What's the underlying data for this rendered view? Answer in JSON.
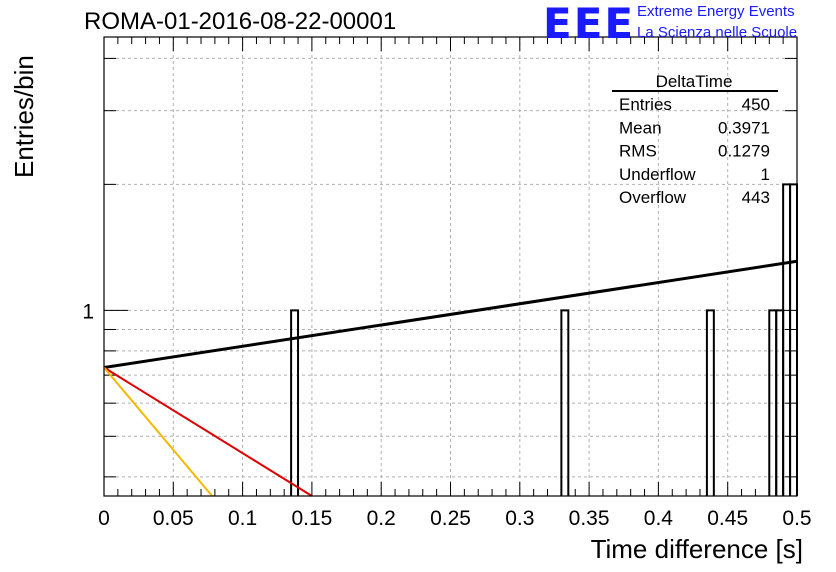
{
  "header": {
    "run_title": "ROMA-01-2016-08-22-00001",
    "logo_text": "EEE",
    "logo_line1": "Extreme Energy Events",
    "logo_line2": "La Scienza nelle Scuole"
  },
  "colors": {
    "logo": "#1a1aff",
    "histogram": "#000000",
    "fit_black": "#000000",
    "fit_red": "#e00000",
    "fit_orange": "#f5b800",
    "grid": "#b0b0b0"
  },
  "stats_box": {
    "title": "DeltaTime",
    "rows": [
      {
        "label": "Entries",
        "value": "450"
      },
      {
        "label": "Mean",
        "value": "0.3971"
      },
      {
        "label": "RMS",
        "value": "0.1279"
      },
      {
        "label": "Underflow",
        "value": "1"
      },
      {
        "label": "Overflow",
        "value": "443"
      }
    ]
  },
  "chart_data": {
    "type": "bar",
    "histogram": "step",
    "xlabel": "Time difference [s]",
    "ylabel": "Entries/bin",
    "xlim": [
      0,
      0.5
    ],
    "ylim": [
      0.36,
      4.5
    ],
    "log_y": true,
    "grid": true,
    "x_ticks": [
      "0",
      "0.05",
      "0.1",
      "0.15",
      "0.2",
      "0.25",
      "0.3",
      "0.35",
      "0.4",
      "0.45",
      "0.5"
    ],
    "y_ticks": [
      "1"
    ],
    "bin_width": 0.005,
    "bins": [
      {
        "x": 0.135,
        "count": 1
      },
      {
        "x": 0.33,
        "count": 1
      },
      {
        "x": 0.435,
        "count": 1
      },
      {
        "x": 0.48,
        "count": 1
      },
      {
        "x": 0.485,
        "count": 1
      },
      {
        "x": 0.49,
        "count": 2
      },
      {
        "x": 0.495,
        "count": 2
      }
    ],
    "series": [
      {
        "color": "black",
        "x": [
          0,
          0.5
        ],
        "y": [
          0.73,
          1.31
        ]
      },
      {
        "color": "red",
        "x": [
          0,
          0.15
        ],
        "y": [
          0.73,
          0.36
        ]
      },
      {
        "color": "orange",
        "x": [
          0,
          0.078
        ],
        "y": [
          0.73,
          0.36
        ]
      }
    ]
  }
}
